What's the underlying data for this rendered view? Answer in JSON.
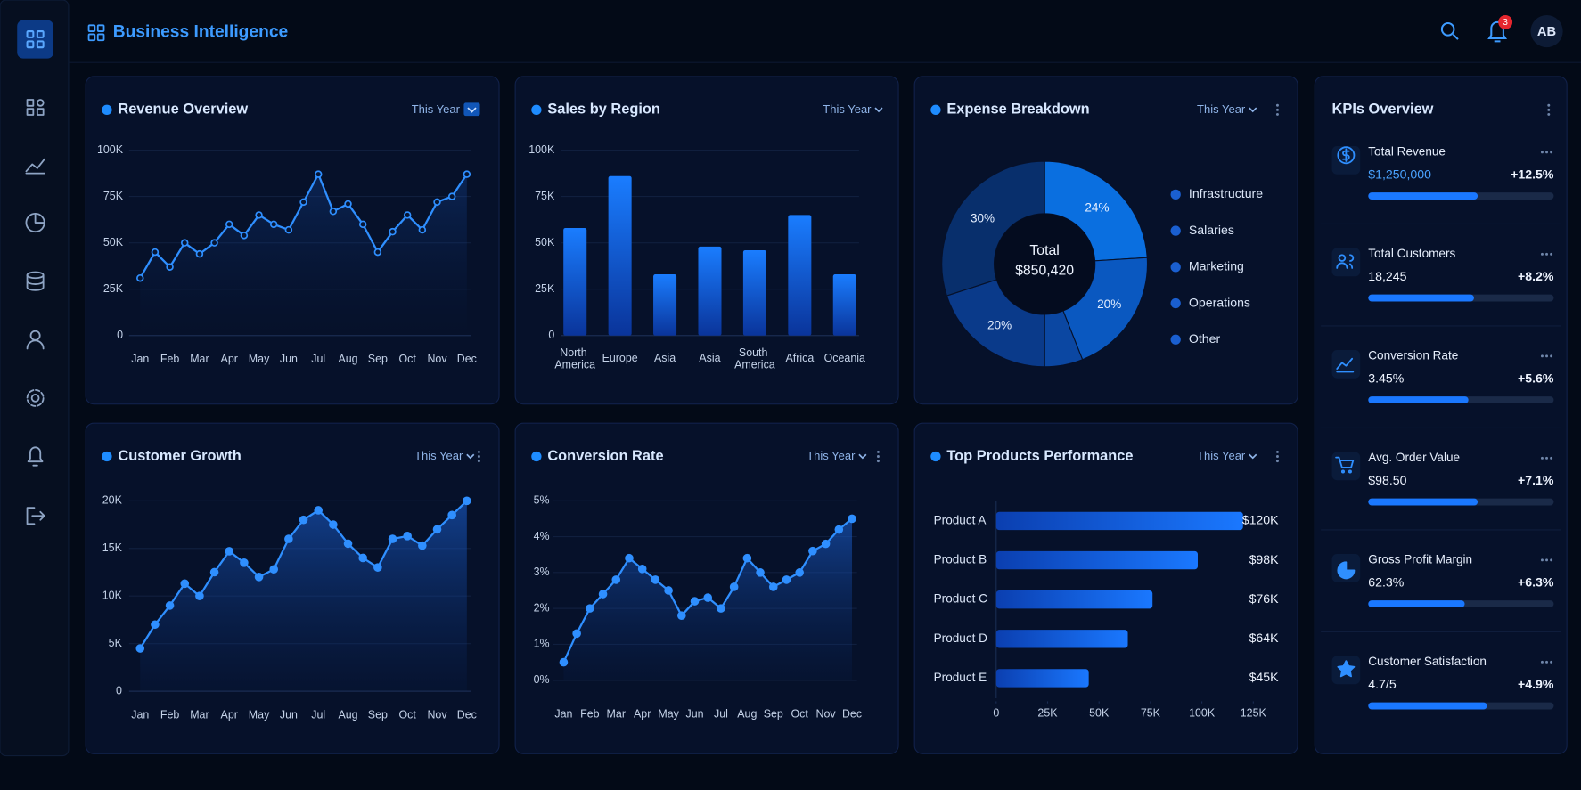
{
  "header": {
    "title": "Business Intelligence",
    "notifications": 3,
    "avatar": "AB"
  },
  "chart_data": [
    {
      "type": "line",
      "title": "Revenue Overview",
      "period": "This Year",
      "color": "#2f8fff",
      "grid": true,
      "categories": [
        "Jan",
        null,
        "Feb",
        null,
        "Mar",
        null,
        "Apr",
        null,
        "May",
        null,
        "Jun",
        null,
        "Jul",
        null,
        "Aug",
        null,
        "Sep",
        null,
        "Oct",
        null,
        "Nov",
        null,
        "Dec"
      ],
      "values": [
        31000,
        45000,
        37000,
        50000,
        44000,
        50000,
        60000,
        54000,
        65000,
        60000,
        57000,
        72000,
        87000,
        67000,
        71000,
        60000,
        45000,
        56000,
        65000,
        57000,
        72000,
        75000,
        87000
      ],
      "ylim": [
        0,
        100000
      ],
      "yticks": [
        0,
        {
          "value": 25000,
          "label": "25K"
        },
        {
          "value": 50000,
          "label": "50K"
        },
        {
          "value": 75000,
          "label": "75K"
        },
        {
          "value": 100000,
          "label": "100K"
        }
      ]
    },
    {
      "type": "bar",
      "title": "Sales by Region",
      "period": "This Year",
      "color": "#1a78ff",
      "grid": true,
      "categories": [
        "North America",
        "Europe",
        "Asia",
        "Asia",
        "South America",
        "Africa",
        "Oceania"
      ],
      "values": [
        58000,
        86000,
        33000,
        48000,
        46000,
        65000,
        33000
      ],
      "ylim": [
        0,
        100000
      ],
      "yticks": [
        0,
        {
          "value": 25000,
          "label": "25K"
        },
        {
          "value": 50000,
          "label": "50K"
        },
        {
          "value": 75000,
          "label": "75K"
        },
        {
          "value": 100000,
          "label": "100K"
        }
      ]
    },
    {
      "type": "donut",
      "title": "Expense Breakdown",
      "period": "This Year",
      "center_label": "Total",
      "center_value": "$850,420",
      "categories": [
        "Infrastructure",
        "Salaries",
        "Marketing",
        "Operations",
        "Other"
      ],
      "values": [
        24,
        20,
        6,
        20,
        30
      ],
      "value_labels": [
        "24%",
        "20%",
        null,
        "20%",
        "30%"
      ],
      "colors": [
        "#0a6fe0",
        "#0a58c0",
        "#0b47a2",
        "#0a3a8a",
        "#082f6c"
      ]
    },
    {
      "type": "area",
      "title": "Customer Growth",
      "period": "This Year",
      "color": "#2f8fff",
      "grid": true,
      "categories": [
        "Jan",
        null,
        "Feb",
        null,
        "Mar",
        null,
        "Apr",
        null,
        "May",
        null,
        "Jun",
        null,
        "Jul",
        null,
        "Aug",
        null,
        "Sep",
        null,
        "Oct",
        null,
        "Nov",
        null,
        "Dec"
      ],
      "values": [
        4500,
        7000,
        9000,
        11300,
        10000,
        12500,
        14700,
        13500,
        12000,
        12800,
        16000,
        18000,
        19000,
        17500,
        15500,
        14000,
        13000,
        16000,
        16300,
        15300,
        17000,
        18500,
        20000
      ],
      "ylim": [
        0,
        20000
      ],
      "yticks": [
        0,
        {
          "value": 5000,
          "label": "5K"
        },
        {
          "value": 10000,
          "label": "10K"
        },
        {
          "value": 15000,
          "label": "15K"
        },
        {
          "value": 20000,
          "label": "20K"
        }
      ]
    },
    {
      "type": "area",
      "title": "Conversion Rate",
      "period": "This Year",
      "color": "#2f8fff",
      "grid": true,
      "categories": [
        "Jan",
        null,
        "Feb",
        null,
        "Mar",
        null,
        "Apr",
        null,
        "May",
        null,
        "Jun",
        null,
        "Jul",
        null,
        "Aug",
        null,
        "Sep",
        null,
        "Oct",
        null,
        "Nov",
        null,
        "Dec"
      ],
      "values": [
        0.5,
        1.3,
        2.0,
        2.4,
        2.8,
        3.4,
        3.1,
        2.8,
        2.5,
        1.8,
        2.2,
        2.3,
        2.0,
        2.6,
        3.4,
        3.0,
        2.6,
        2.8,
        3.0,
        3.6,
        3.8,
        4.2,
        4.5
      ],
      "ylim": [
        0,
        5
      ],
      "yticks": [
        {
          "value": 0,
          "label": "0%"
        },
        {
          "value": 1,
          "label": "1%"
        },
        {
          "value": 2,
          "label": "2%"
        },
        {
          "value": 3,
          "label": "3%"
        },
        {
          "value": 4,
          "label": "4%"
        },
        {
          "value": 5,
          "label": "5%"
        }
      ]
    },
    {
      "type": "hbar",
      "title": "Top Products Performance",
      "period": "This Year",
      "color": "#1a6cf0",
      "categories": [
        "Product A",
        "Product B",
        "Product C",
        "Product D",
        "Product E"
      ],
      "values": [
        120000,
        98000,
        76000,
        64000,
        45000
      ],
      "value_labels": [
        "$120K",
        "$98K",
        "$76K",
        "$64K",
        "$45K"
      ],
      "xlim": [
        0,
        125000
      ],
      "xticks": [
        0,
        {
          "value": 25000,
          "label": "25K"
        },
        {
          "value": 50000,
          "label": "50K"
        },
        {
          "value": 75000,
          "label": "75K"
        },
        {
          "value": 100000,
          "label": "100K"
        },
        {
          "value": 125000,
          "label": "125K"
        }
      ]
    }
  ],
  "kpis": {
    "title": "KPIs Overview",
    "items": [
      {
        "name": "Total Revenue",
        "value": "$1,250,000",
        "change": "+12.5%",
        "progress": 59
      },
      {
        "name": "Total Customers",
        "value": "18,245",
        "change": "+8.2%",
        "progress": 57
      },
      {
        "name": "Conversion Rate",
        "value": "3.45%",
        "change": "+5.6%",
        "progress": 54
      },
      {
        "name": "Avg. Order Value",
        "value": "$98.50",
        "change": "+7.1%",
        "progress": 59
      },
      {
        "name": "Gross Profit Margin",
        "value": "62.3%",
        "change": "+6.3%",
        "progress": 52
      },
      {
        "name": "Customer Satisfaction",
        "value": "4.7/5",
        "change": "+4.9%",
        "progress": 64
      }
    ]
  }
}
